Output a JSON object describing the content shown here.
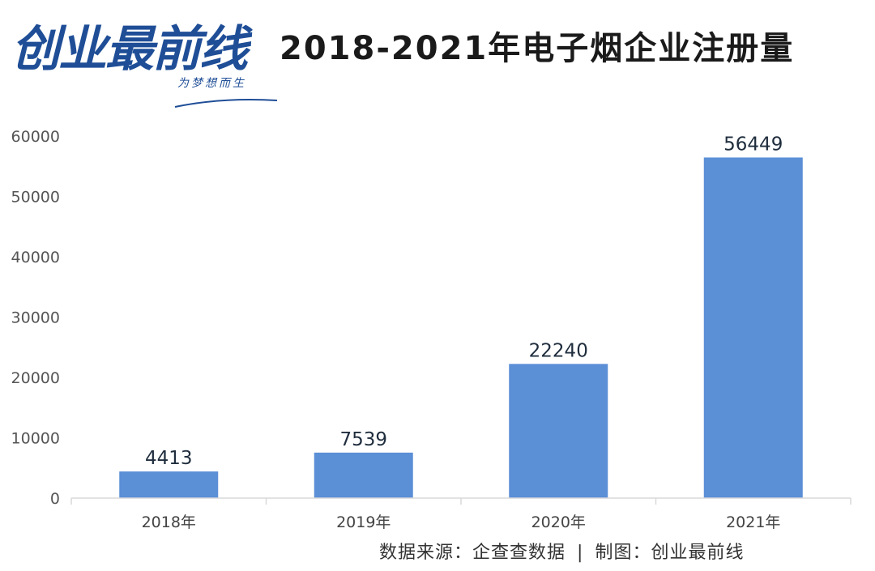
{
  "logo": {
    "main": "创业最前线",
    "sub": "为梦想而生"
  },
  "colors": {
    "bar": "#5b8fd6",
    "axis": "#d9d9d9",
    "brand": "#1f4e97",
    "text": "#333333"
  },
  "chart_data": {
    "type": "bar",
    "title": "2018-2021年电子烟企业注册量",
    "categories": [
      "2018年",
      "2019年",
      "2020年",
      "2021年"
    ],
    "values": [
      4413,
      7539,
      22240,
      56449
    ],
    "data_labels": [
      "4413",
      "7539",
      "22240",
      "56449"
    ],
    "y_ticks": [
      0,
      10000,
      20000,
      30000,
      40000,
      50000,
      60000
    ],
    "ylim": [
      0,
      60000
    ],
    "xlabel": "",
    "ylabel": "",
    "grid": false,
    "legend": "none"
  },
  "footer": {
    "source_label": "数据来源：企查查数据",
    "separator": "|",
    "maker_label": "制图：创业最前线"
  }
}
